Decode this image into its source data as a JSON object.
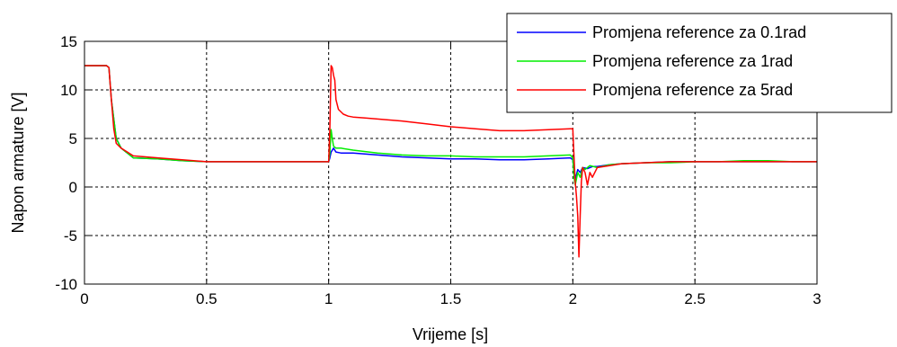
{
  "chart_data": {
    "type": "line",
    "title": "",
    "xlabel": "Vrijeme [s]",
    "ylabel": "Napon armature [V]",
    "xlim": [
      0,
      3
    ],
    "ylim": [
      -10,
      15
    ],
    "xticks": [
      "0",
      "0.5",
      "1",
      "1.5",
      "2",
      "2.5",
      "3"
    ],
    "yticks": [
      "15",
      "10",
      "5",
      "0",
      "-5",
      "-10"
    ],
    "grid": true,
    "legend_position": "top-right",
    "series": [
      {
        "name": "Promjena reference za 0.1rad",
        "color": "#0000ff",
        "x": [
          0,
          0.09,
          0.1,
          0.11,
          0.13,
          0.15,
          0.2,
          0.3,
          0.4,
          0.5,
          0.7,
          0.9,
          0.999,
          1.0,
          1.005,
          1.01,
          1.02,
          1.03,
          1.05,
          1.1,
          1.2,
          1.3,
          1.4,
          1.5,
          1.6,
          1.7,
          1.8,
          1.9,
          1.99,
          2.0,
          2.005,
          2.01,
          2.02,
          2.03,
          2.04,
          2.06,
          2.08,
          2.1,
          2.15,
          2.2,
          2.3,
          2.4,
          2.5,
          2.7,
          2.9,
          3.0
        ],
        "y": [
          12.5,
          12.5,
          12.3,
          9.0,
          5.0,
          4.0,
          3.0,
          2.9,
          2.7,
          2.6,
          2.6,
          2.6,
          2.6,
          2.6,
          3.0,
          3.6,
          4.0,
          3.6,
          3.5,
          3.5,
          3.3,
          3.1,
          3.0,
          2.9,
          2.9,
          2.8,
          2.8,
          2.9,
          3.0,
          2.8,
          1.5,
          0.8,
          1.8,
          1.5,
          2.0,
          1.9,
          2.1,
          2.1,
          2.3,
          2.4,
          2.5,
          2.6,
          2.6,
          2.6,
          2.6,
          2.6
        ]
      },
      {
        "name": "Promjena reference za 1rad",
        "color": "#00ee00",
        "x": [
          0,
          0.09,
          0.1,
          0.11,
          0.13,
          0.15,
          0.2,
          0.3,
          0.4,
          0.5,
          0.7,
          0.9,
          0.999,
          1.0,
          1.005,
          1.01,
          1.015,
          1.02,
          1.03,
          1.05,
          1.1,
          1.2,
          1.3,
          1.4,
          1.5,
          1.6,
          1.7,
          1.8,
          1.9,
          1.99,
          2.0,
          2.005,
          2.01,
          2.02,
          2.03,
          2.04,
          2.05,
          2.07,
          2.1,
          2.15,
          2.2,
          2.3,
          2.4,
          2.5,
          2.6,
          2.7,
          2.8,
          2.9,
          3.0
        ],
        "y": [
          12.5,
          12.5,
          12.3,
          9.0,
          5.0,
          4.0,
          3.0,
          2.9,
          2.7,
          2.6,
          2.6,
          2.6,
          2.6,
          2.6,
          3.5,
          5.9,
          5.0,
          4.2,
          4.0,
          4.0,
          3.8,
          3.5,
          3.3,
          3.2,
          3.2,
          3.1,
          3.1,
          3.1,
          3.2,
          3.3,
          3.0,
          1.0,
          0.2,
          1.5,
          1.0,
          2.0,
          1.8,
          2.2,
          2.0,
          2.3,
          2.4,
          2.5,
          2.5,
          2.6,
          2.6,
          2.7,
          2.7,
          2.6,
          2.6
        ]
      },
      {
        "name": "Promjena reference za 5rad",
        "color": "#ff0000",
        "x": [
          0,
          0.09,
          0.1,
          0.11,
          0.12,
          0.13,
          0.15,
          0.2,
          0.3,
          0.4,
          0.5,
          0.7,
          0.9,
          0.999,
          1.0,
          1.005,
          1.01,
          1.015,
          1.02,
          1.025,
          1.03,
          1.04,
          1.06,
          1.08,
          1.1,
          1.15,
          1.2,
          1.3,
          1.4,
          1.5,
          1.6,
          1.7,
          1.8,
          1.9,
          1.99,
          2.0,
          2.005,
          2.01,
          2.015,
          2.02,
          2.025,
          2.03,
          2.035,
          2.04,
          2.05,
          2.06,
          2.07,
          2.08,
          2.1,
          2.15,
          2.2,
          2.3,
          2.4,
          2.5,
          2.6,
          2.7,
          2.8,
          2.9,
          3.0
        ],
        "y": [
          12.5,
          12.5,
          12.3,
          9.0,
          6.0,
          4.5,
          4.0,
          3.2,
          3.0,
          2.8,
          2.6,
          2.6,
          2.6,
          2.6,
          2.6,
          6.0,
          12.5,
          12.3,
          11.5,
          11.0,
          9.0,
          8.0,
          7.5,
          7.3,
          7.2,
          7.1,
          7.0,
          6.8,
          6.5,
          6.2,
          6.0,
          5.8,
          5.8,
          5.9,
          6.0,
          6.0,
          3.0,
          0.5,
          -1.0,
          -3.0,
          -7.2,
          -3.0,
          0.5,
          2.0,
          1.5,
          0.2,
          1.5,
          1.0,
          2.0,
          2.2,
          2.4,
          2.5,
          2.6,
          2.6,
          2.6,
          2.6,
          2.6,
          2.6,
          2.6
        ]
      }
    ]
  }
}
